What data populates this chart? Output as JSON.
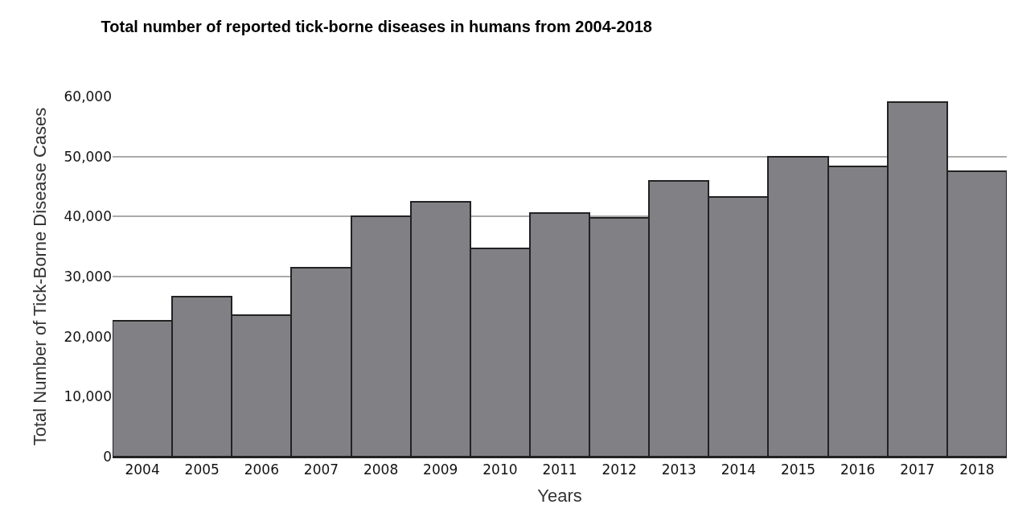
{
  "chart_data": {
    "type": "bar",
    "title": "Total number of reported tick-borne diseases in humans from 2004-2018",
    "xlabel": "Years",
    "ylabel": "Total Number of Tick-Borne Disease Cases",
    "categories": [
      "2004",
      "2005",
      "2006",
      "2007",
      "2008",
      "2009",
      "2010",
      "2011",
      "2012",
      "2013",
      "2014",
      "2015",
      "2016",
      "2017",
      "2018"
    ],
    "values": [
      22600,
      26600,
      23600,
      31500,
      40000,
      42500,
      34700,
      40600,
      39800,
      45900,
      43300,
      50000,
      48400,
      59100,
      47500
    ],
    "color": "#808085",
    "ylim": [
      0,
      60000
    ],
    "yticks": [
      {
        "value": 0,
        "label": "0"
      },
      {
        "value": 10000,
        "label": "10,000"
      },
      {
        "value": 20000,
        "label": "20,000"
      },
      {
        "value": 30000,
        "label": "30,000"
      },
      {
        "value": 40000,
        "label": "40,000"
      },
      {
        "value": 50000,
        "label": "50,000"
      },
      {
        "value": 60000,
        "label": "60,000"
      }
    ],
    "grid": "y",
    "legend": false
  }
}
